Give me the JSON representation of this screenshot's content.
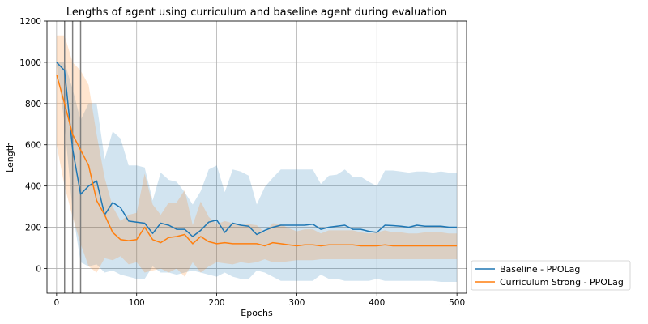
{
  "chart_data": {
    "type": "line",
    "title": "Lengths of agent using curriculum and baseline agent during evaluation",
    "xlabel": "Epochs",
    "ylabel": "Length",
    "xlim": [
      -12,
      512
    ],
    "ylim": [
      -120,
      1200
    ],
    "xticks": [
      0,
      100,
      200,
      300,
      400,
      500
    ],
    "yticks": [
      0,
      200,
      400,
      600,
      800,
      1000,
      1200
    ],
    "grid": true,
    "legend_position": "outside-bottom-right",
    "vlines": [
      10,
      20,
      30
    ],
    "x": [
      0,
      10,
      20,
      30,
      40,
      50,
      60,
      70,
      80,
      90,
      100,
      110,
      120,
      130,
      140,
      150,
      160,
      170,
      180,
      190,
      200,
      210,
      220,
      230,
      240,
      250,
      260,
      270,
      280,
      290,
      300,
      310,
      320,
      330,
      340,
      350,
      360,
      370,
      380,
      390,
      400,
      410,
      420,
      430,
      440,
      450,
      460,
      470,
      480,
      490,
      500
    ],
    "series": [
      {
        "name": "Baseline - PPOLag",
        "color": "#1f77b4",
        "band_color": "#1f77b4",
        "values": [
          1000,
          960,
          580,
          360,
          400,
          425,
          260,
          320,
          295,
          230,
          225,
          220,
          170,
          220,
          210,
          190,
          190,
          155,
          185,
          225,
          235,
          175,
          220,
          210,
          205,
          165,
          185,
          200,
          210,
          210,
          210,
          210,
          215,
          190,
          200,
          205,
          210,
          190,
          190,
          180,
          175,
          210,
          208,
          205,
          200,
          210,
          205,
          205,
          205,
          200,
          200
        ],
        "upper": [
          1000,
          1000,
          870,
          720,
          800,
          800,
          530,
          665,
          630,
          500,
          500,
          490,
          330,
          465,
          430,
          420,
          370,
          310,
          375,
          480,
          500,
          370,
          480,
          470,
          450,
          310,
          395,
          440,
          480,
          480,
          480,
          480,
          480,
          410,
          450,
          455,
          480,
          445,
          445,
          420,
          400,
          475,
          475,
          470,
          465,
          470,
          470,
          465,
          470,
          465,
          465
        ],
        "lower": [
          1000,
          700,
          280,
          30,
          10,
          20,
          -20,
          -10,
          -30,
          -40,
          -50,
          -50,
          10,
          -20,
          -20,
          -30,
          -20,
          -10,
          -20,
          -30,
          -40,
          -20,
          -40,
          -50,
          -50,
          -10,
          -20,
          -40,
          -60,
          -60,
          -60,
          -60,
          -60,
          -30,
          -50,
          -50,
          -60,
          -60,
          -60,
          -60,
          -50,
          -60,
          -60,
          -60,
          -60,
          -60,
          -60,
          -60,
          -65,
          -65,
          -65
        ]
      },
      {
        "name": "Curriculum Strong - PPOLag",
        "color": "#ff7f0e",
        "band_color": "#ff7f0e",
        "values": [
          940,
          800,
          650,
          575,
          500,
          330,
          260,
          175,
          140,
          135,
          140,
          200,
          140,
          125,
          150,
          155,
          165,
          120,
          155,
          130,
          120,
          125,
          120,
          120,
          120,
          120,
          110,
          125,
          120,
          115,
          110,
          115,
          115,
          110,
          115,
          115,
          115,
          115,
          110,
          110,
          110,
          115,
          110,
          110,
          110,
          110,
          110,
          110,
          110,
          110,
          110
        ],
        "upper": [
          1130,
          1130,
          1000,
          960,
          890,
          650,
          440,
          300,
          230,
          260,
          270,
          460,
          310,
          260,
          320,
          320,
          380,
          210,
          325,
          250,
          215,
          230,
          220,
          210,
          215,
          210,
          175,
          220,
          215,
          195,
          180,
          190,
          190,
          170,
          185,
          185,
          185,
          185,
          175,
          170,
          175,
          185,
          175,
          175,
          170,
          170,
          175,
          175,
          175,
          170,
          170
        ],
        "lower": [
          600,
          400,
          250,
          120,
          10,
          -20,
          50,
          40,
          60,
          20,
          30,
          -20,
          -10,
          0,
          -20,
          0,
          -40,
          30,
          -20,
          10,
          30,
          25,
          20,
          30,
          25,
          30,
          45,
          30,
          30,
          35,
          40,
          40,
          40,
          45,
          45,
          45,
          45,
          45,
          45,
          45,
          45,
          45,
          45,
          45,
          45,
          45,
          45,
          45,
          45,
          45,
          45
        ]
      }
    ]
  }
}
